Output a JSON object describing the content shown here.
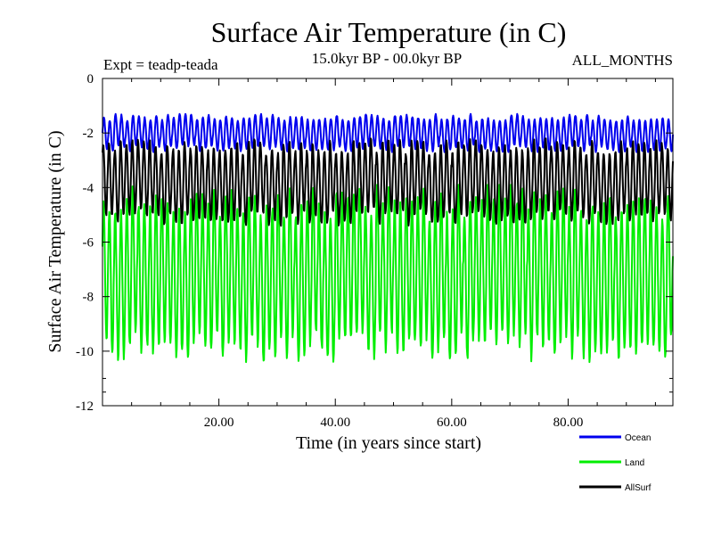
{
  "chart_data": {
    "type": "line",
    "title": "Surface Air Temperature (in C)",
    "subtitle": "15.0kyr BP - 00.0kyr BP",
    "experiment": "Expt = teadp-teada",
    "period": "ALL_MONTHS",
    "xlabel": "Time (in years since start)",
    "ylabel": "Surface Air Temperature (in C)",
    "xlim": [
      0,
      98
    ],
    "ylim": [
      -12,
      0
    ],
    "x_ticks": [
      20,
      40,
      60,
      80
    ],
    "x_tick_labels": [
      "20.00",
      "40.00",
      "60.00",
      "80.00"
    ],
    "y_ticks": [
      0,
      -2,
      -4,
      -6,
      -8,
      -10,
      -12
    ],
    "y_tick_labels": [
      "0",
      "-2",
      "-4",
      "-6",
      "-8",
      "-10",
      "-12"
    ],
    "grid": false,
    "legend_position": "bottom-right",
    "sampling": "monthly",
    "series": [
      {
        "name": "Ocean",
        "color": "#0000ee",
        "mean_c": -2.0,
        "seasonal_range_c": [
          -2.7,
          -1.3
        ]
      },
      {
        "name": "Land",
        "color": "#00ee00",
        "mean_c": -6.5,
        "seasonal_range_c": [
          -10.4,
          -3.9
        ]
      },
      {
        "name": "AllSurf",
        "color": "#000000",
        "mean_c": -3.8,
        "seasonal_range_c": [
          -5.4,
          -2.2
        ]
      }
    ]
  }
}
